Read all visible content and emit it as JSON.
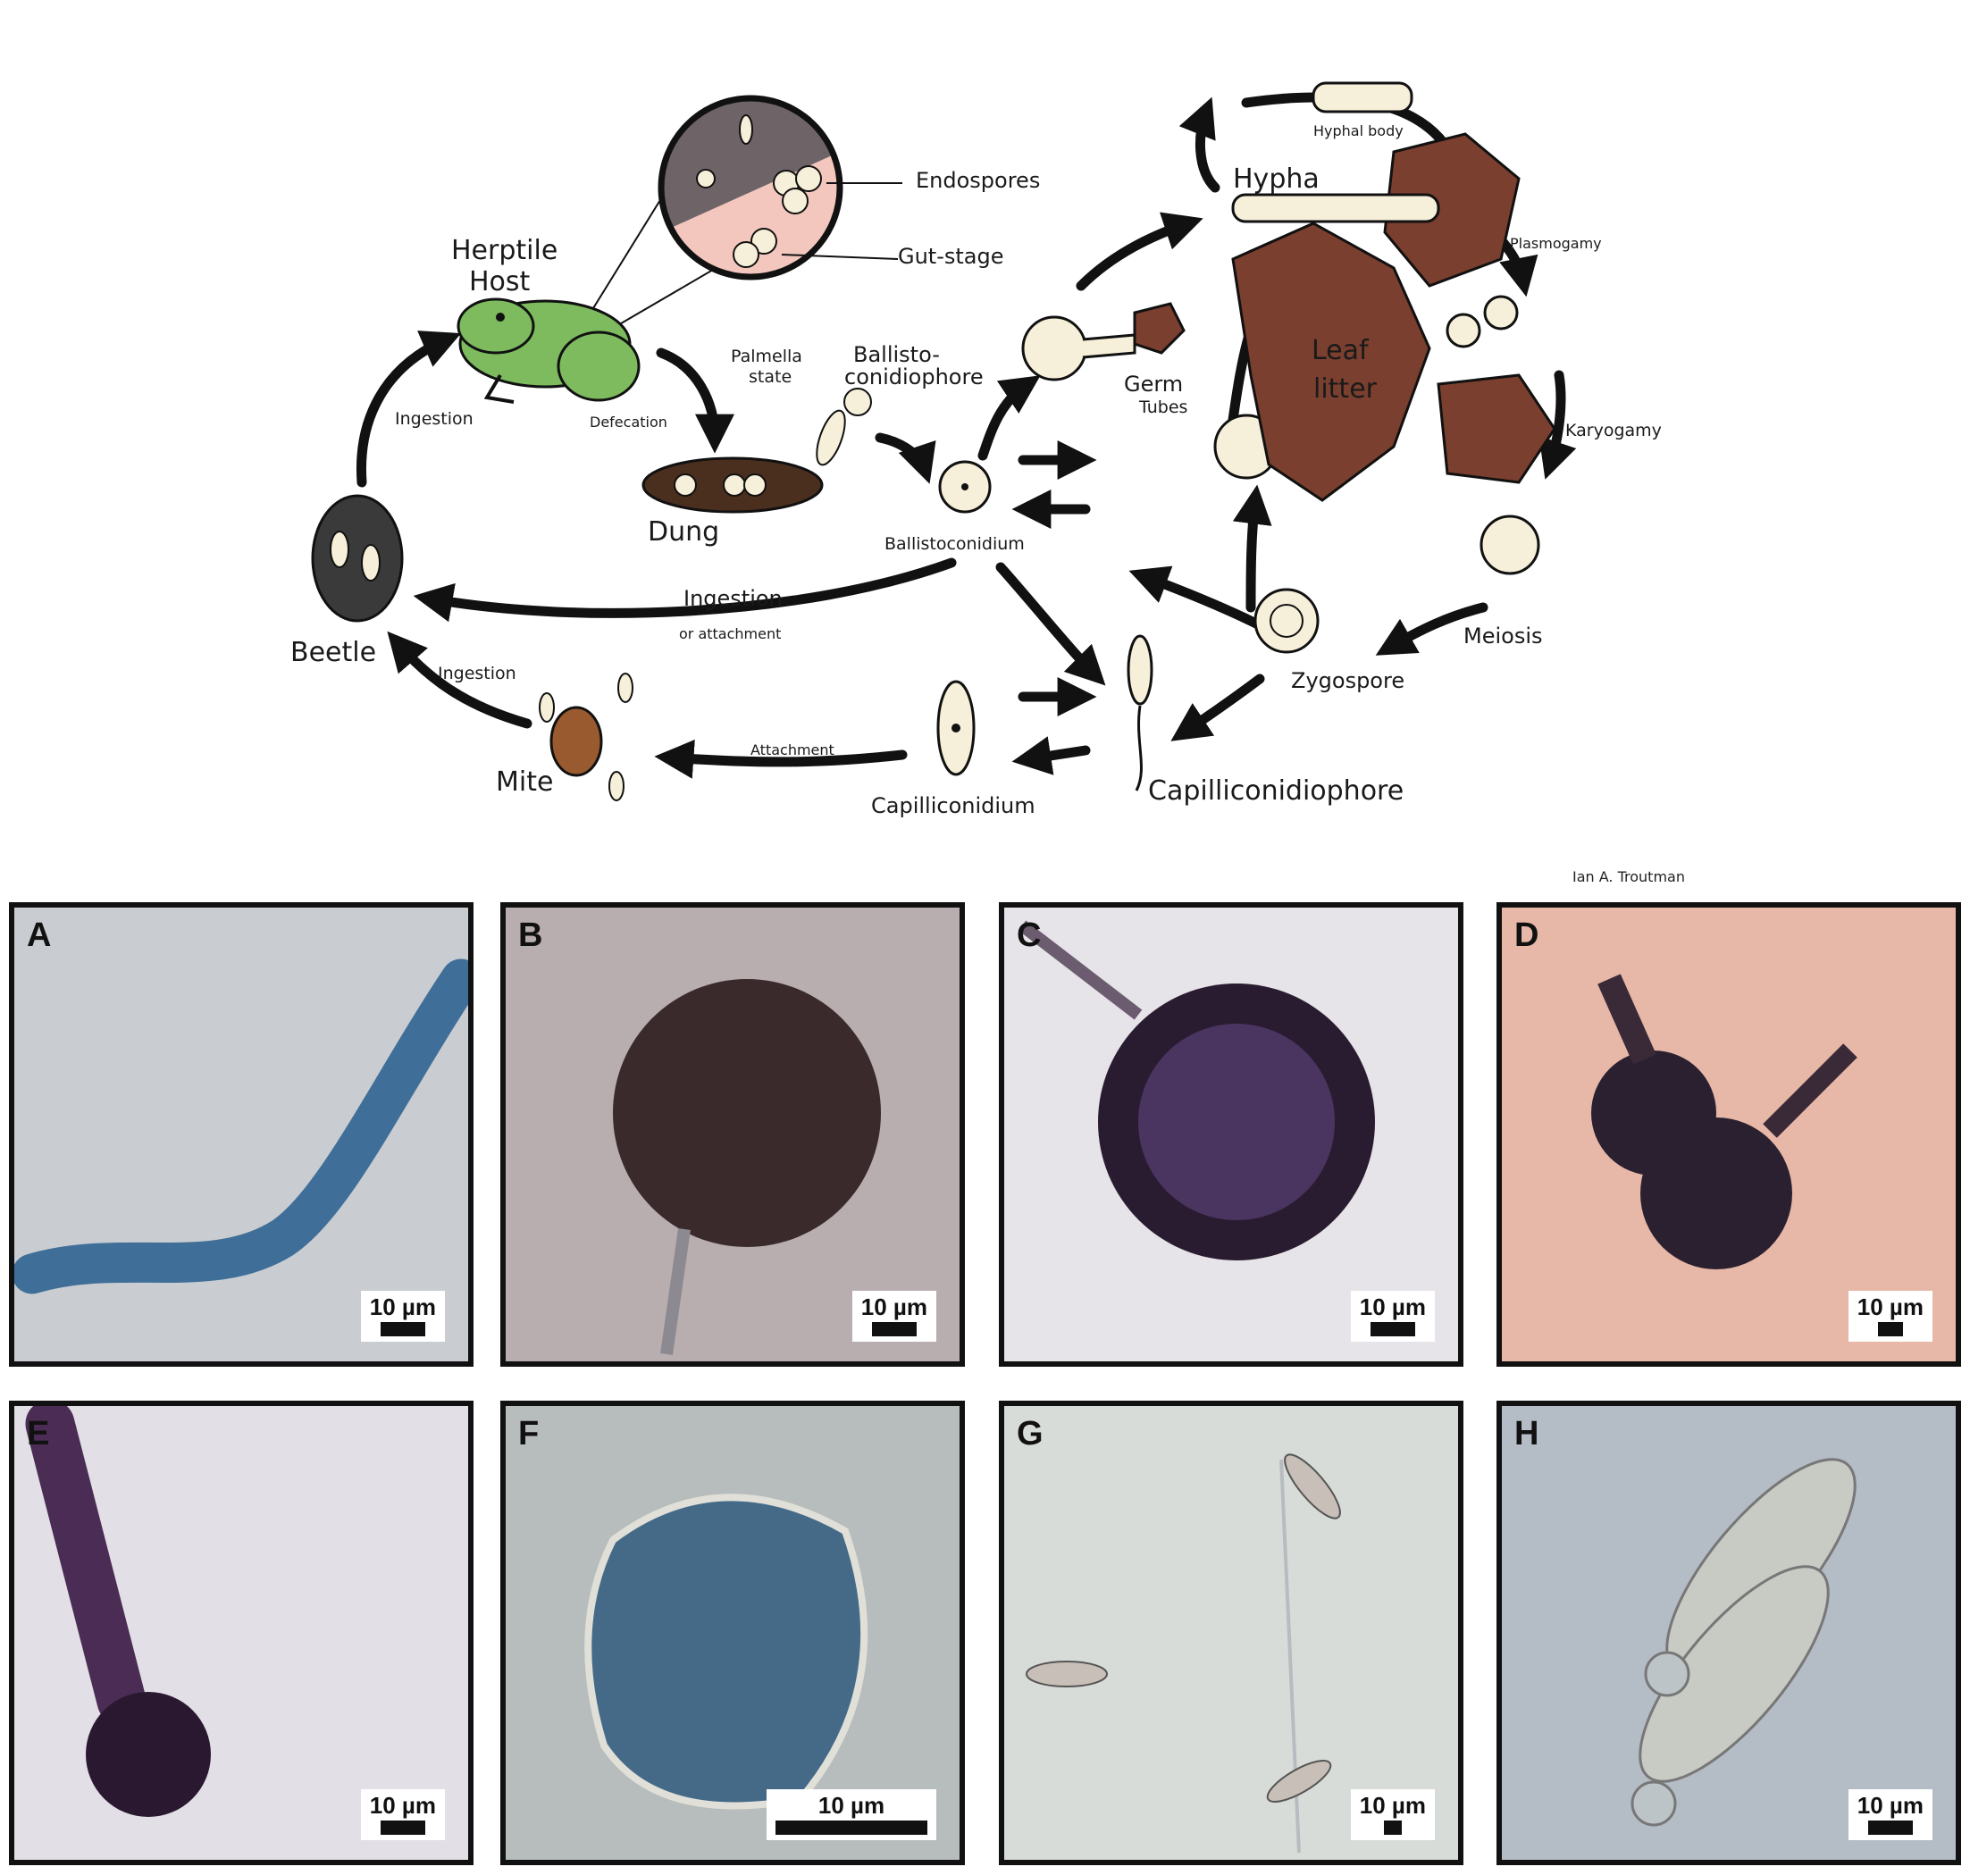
{
  "diagram": {
    "labels": {
      "herptile_host": "Herptile\nHost",
      "endospores": "Endospores",
      "gut_stage": "Gut-stage",
      "ingestion_left": "Ingestion",
      "defecation": "Defecation",
      "palmella_state": "Palmella\nstate",
      "ballisto_conidiophore": "Ballisto-\nconidiophore",
      "dung": "Dung",
      "ballistoconidium": "Ballistoconidium",
      "ingestion_or_attachment": "Ingestion",
      "or_attachment": "or attachment",
      "beetle": "Beetle",
      "ingestion_mite": "Ingestion",
      "mite": "Mite",
      "attachment": "Attachment",
      "capilliconidium": "Capilliconidium",
      "capilliconidiophore": "Capilliconidiophore",
      "zygospore": "Zygospore",
      "meiosis": "Meiosis",
      "karyogamy": "Karyogamy",
      "plasmogamy": "Plasmogamy",
      "hypha": "Hypha",
      "hyphal_body": "Hyphal body",
      "germ_tubes": "Germ\nTubes",
      "leaf_litter": "Leaf\nlitter"
    },
    "credit": "Ian A. Troutman"
  },
  "panels": [
    {
      "letter": "A",
      "scale": "10 µm",
      "bg": "#c9cdd1"
    },
    {
      "letter": "B",
      "scale": "10 µm",
      "bg": "#b8aeb0"
    },
    {
      "letter": "C",
      "scale": "10 µm",
      "bg": "#e6e4e8"
    },
    {
      "letter": "D",
      "scale": "10 µm",
      "bg": "#e7b7a8"
    },
    {
      "letter": "E",
      "scale": "10 µm",
      "bg": "#e2e0e6"
    },
    {
      "letter": "F",
      "scale": "10 µm",
      "bg": "#b7bcbc"
    },
    {
      "letter": "G",
      "scale": "10 µm",
      "bg": "#d8dcd8"
    },
    {
      "letter": "H",
      "scale": "10 µm",
      "bg": "#b4bcc6"
    }
  ],
  "colors": {
    "spore_fill": "#f6efd9",
    "frog": "#7dbb5e",
    "leaf": "#7a3f2e",
    "dung": "#4a2f1f"
  }
}
